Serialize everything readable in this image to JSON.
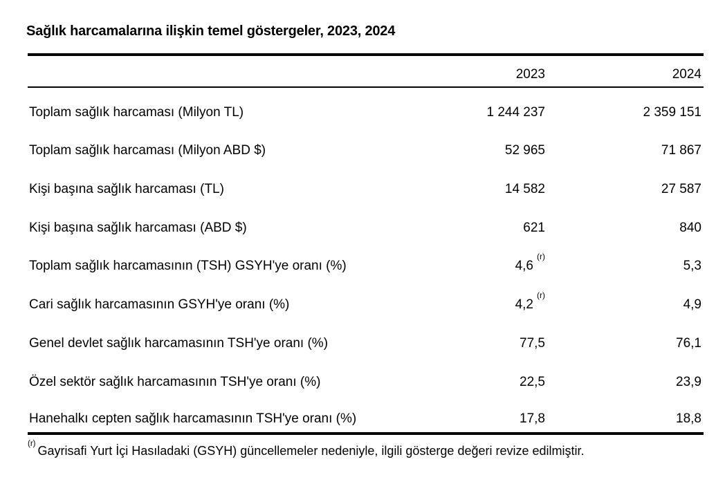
{
  "title": "Sağlık harcamalarına ilişkin temel göstergeler, 2023, 2024",
  "table": {
    "columns": [
      "",
      "2023",
      "2024"
    ],
    "rows": [
      {
        "label": "Toplam sağlık harcaması (Milyon TL)",
        "y2023": "1 244 237",
        "note2023": "",
        "y2024": "2 359 151"
      },
      {
        "label": "Toplam sağlık harcaması (Milyon ABD $)",
        "y2023": "52 965",
        "note2023": "",
        "y2024": "71 867"
      },
      {
        "label": "Kişi başına sağlık harcaması (TL)",
        "y2023": "14 582",
        "note2023": "",
        "y2024": "27 587"
      },
      {
        "label": "Kişi başına sağlık harcaması (ABD $)",
        "y2023": "621",
        "note2023": "",
        "y2024": "840"
      },
      {
        "label": "Toplam sağlık harcamasının (TSH) GSYH'ye oranı (%)",
        "y2023": "4,6",
        "note2023": "(r)",
        "y2024": "5,3"
      },
      {
        "label": "Cari sağlık harcamasının GSYH'ye oranı (%)",
        "y2023": "4,2",
        "note2023": "(r)",
        "y2024": "4,9"
      },
      {
        "label": "Genel devlet sağlık harcamasının TSH'ye oranı (%)",
        "y2023": "77,5",
        "note2023": "",
        "y2024": "76,1"
      },
      {
        "label": "Özel sektör sağlık harcamasının TSH'ye oranı (%)",
        "y2023": "22,5",
        "note2023": "",
        "y2024": "23,9"
      },
      {
        "label": "Hanehalkı cepten sağlık harcamasının TSH'ye oranı (%)",
        "y2023": "17,8",
        "note2023": "",
        "y2024": "18,8"
      }
    ]
  },
  "footnote": {
    "marker": "(r)",
    "text": "Gayrisafi Yurt İçi Hasıladaki (GSYH) güncellemeler nedeniyle, ilgili gösterge değeri revize edilmiştir."
  }
}
